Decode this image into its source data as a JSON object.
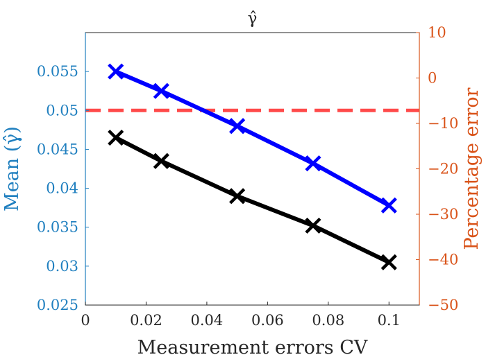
{
  "chart_data": {
    "type": "line",
    "title": "γ̂",
    "xlabel": "Measurement errors CV",
    "ylabel_left": "Mean (γ̂)",
    "ylabel_right": "Percentage error",
    "xlim": [
      0,
      0.11
    ],
    "ylim_left": [
      0.025,
      0.06
    ],
    "ylim_right": [
      -50,
      10
    ],
    "x_ticks": [
      "0",
      "0.02",
      "0.04",
      "0.06",
      "0.08",
      "0.1"
    ],
    "y_left_ticks": [
      "0.025",
      "0.03",
      "0.035",
      "0.04",
      "0.045",
      "0.05",
      "0.055"
    ],
    "y_right_ticks": [
      "-50",
      "-40",
      "-30",
      "-20",
      "-10",
      "0",
      "10"
    ],
    "colors": {
      "left_axis": "#1f7fbf",
      "right_axis": "#d95319",
      "reference": "#ff4a4a"
    },
    "reference_line": {
      "y": 0.05,
      "axis": "left",
      "style": "dashed"
    },
    "series": [
      {
        "axis": "left",
        "color": "#0000ff",
        "marker": "x",
        "x": [
          0.01,
          0.025,
          0.05,
          0.075,
          0.1
        ],
        "y": [
          0.055,
          0.0525,
          0.048,
          0.0432,
          0.0378
        ]
      },
      {
        "axis": "left",
        "color": "#000000",
        "marker": "x",
        "x": [
          0.01,
          0.025,
          0.05,
          0.075,
          0.1
        ],
        "y": [
          0.0465,
          0.0435,
          0.039,
          0.0352,
          0.0305
        ]
      }
    ]
  }
}
